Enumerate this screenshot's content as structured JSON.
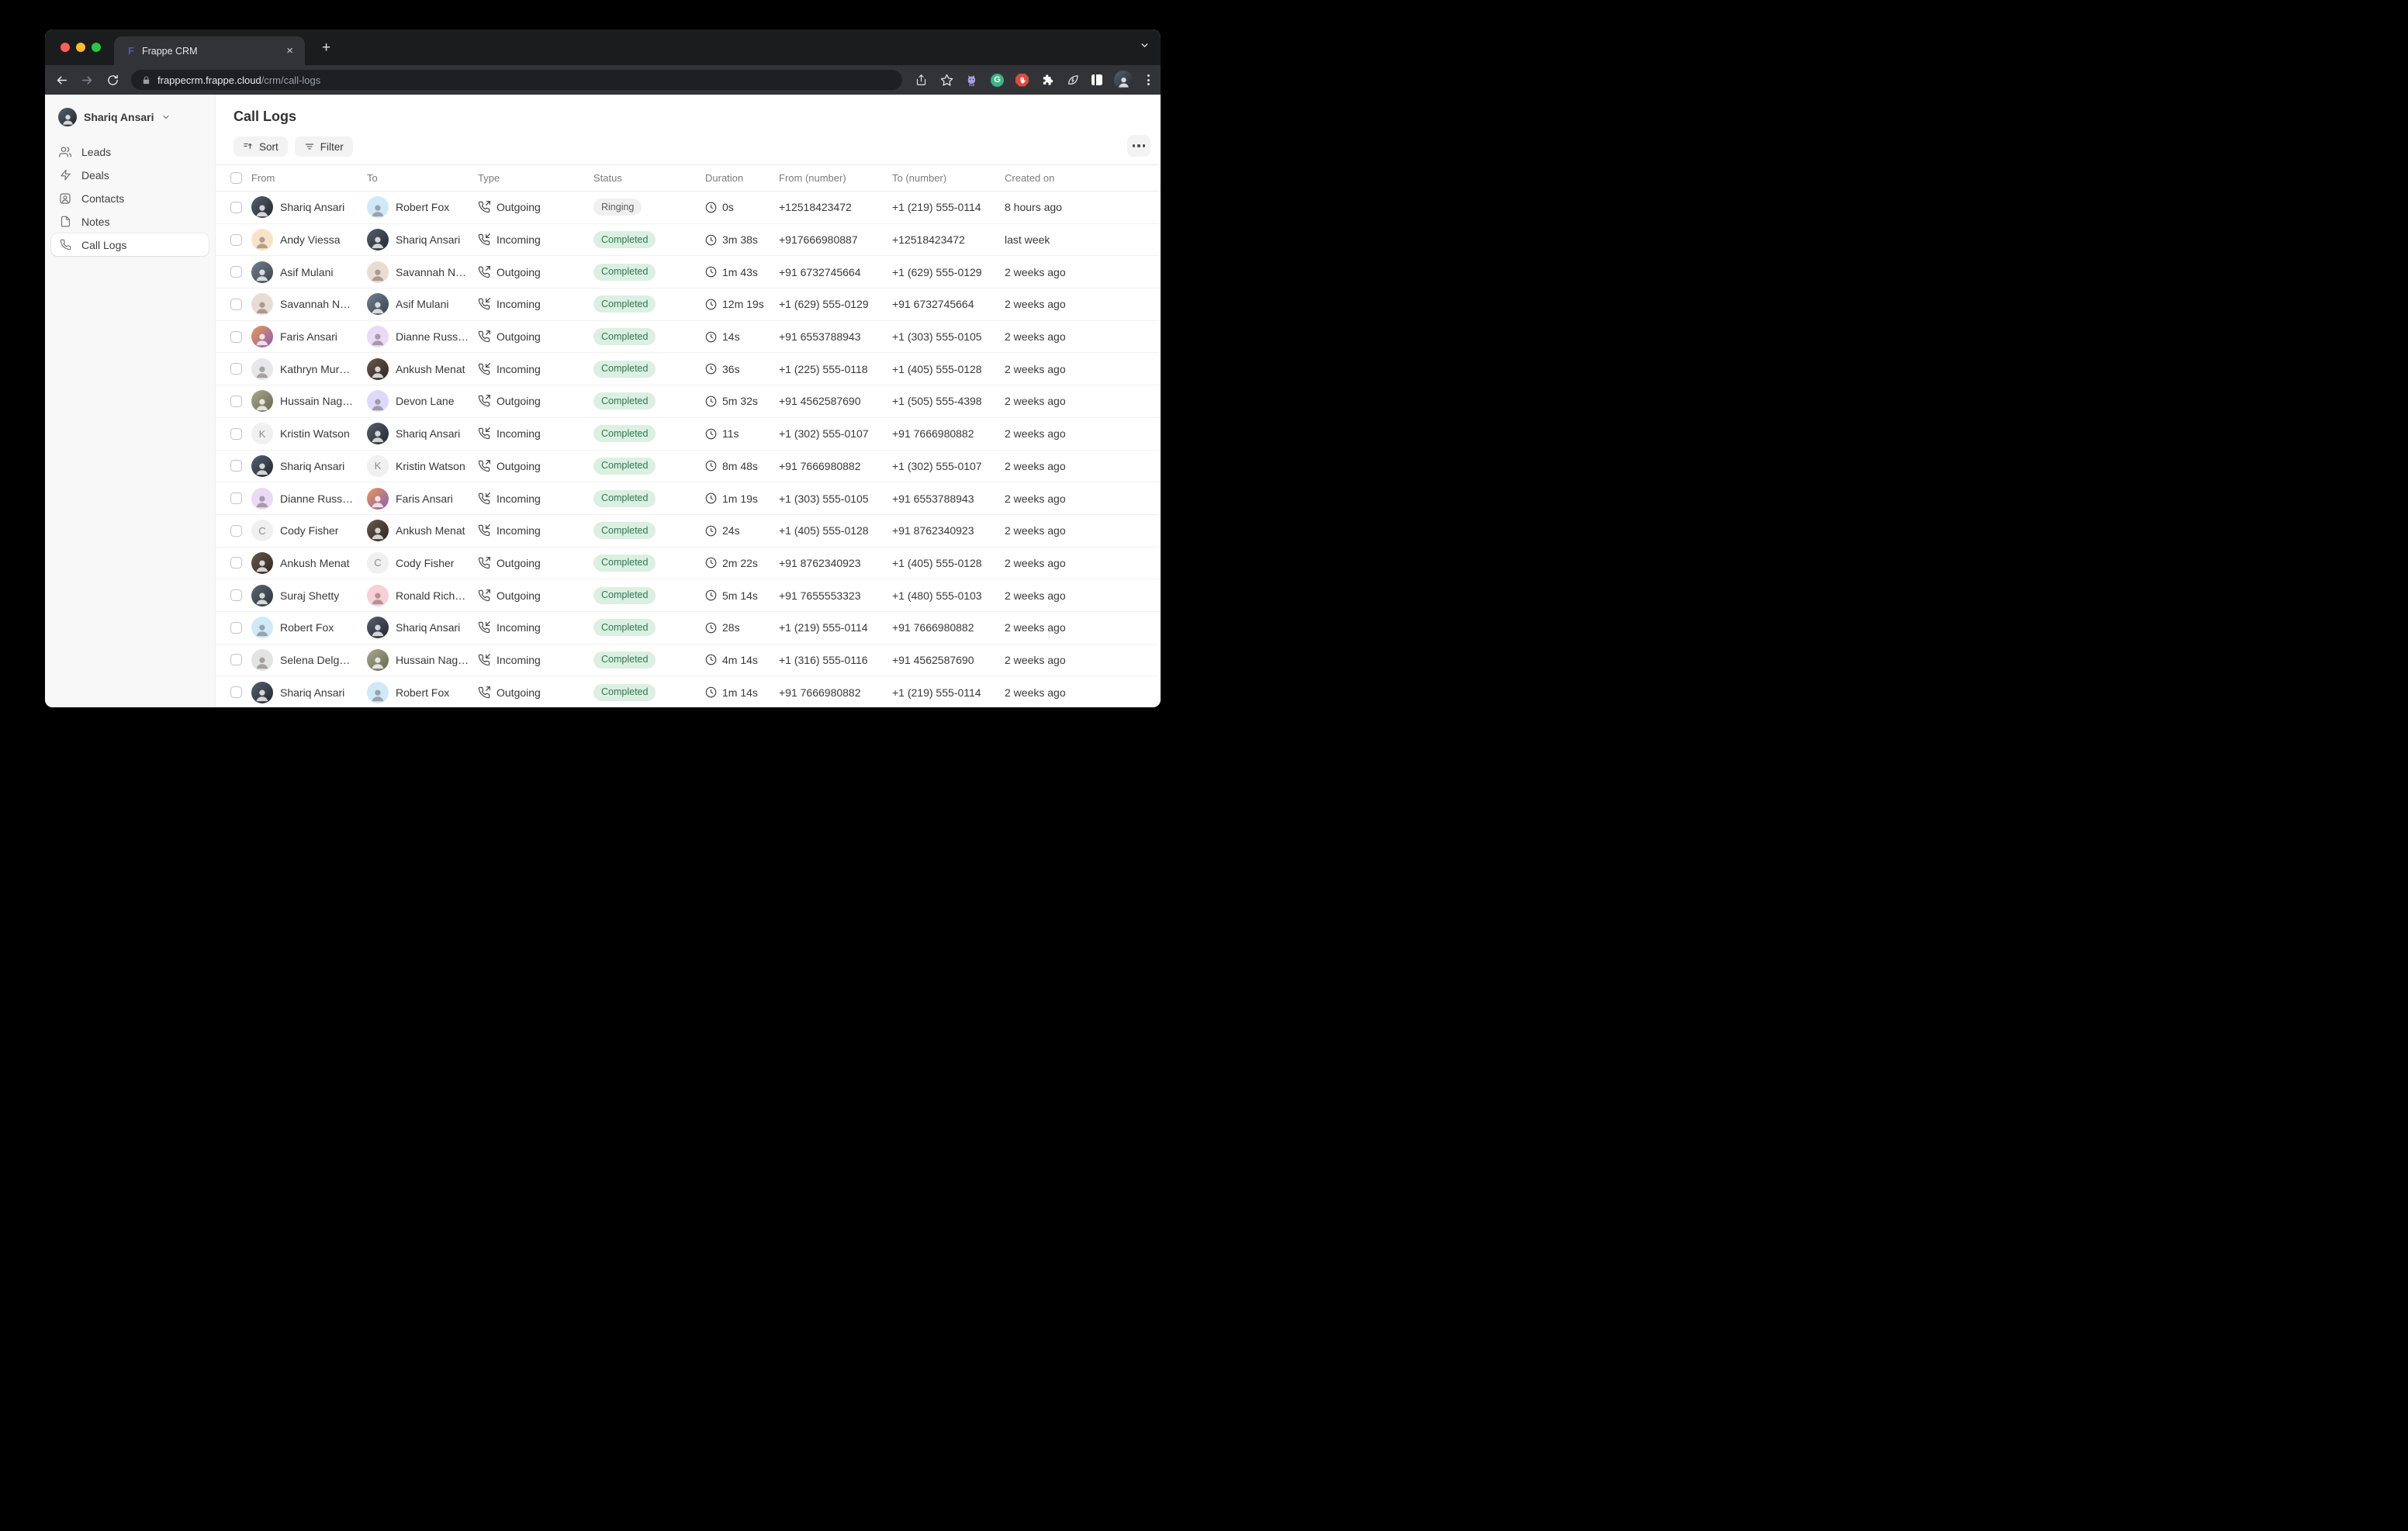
{
  "browser": {
    "tab_title": "Frappe CRM",
    "favicon_letter": "F",
    "url_host": "frappecrm.frappe.cloud",
    "url_path": "/crm/call-logs"
  },
  "sidebar": {
    "user": {
      "name": "Shariq Ansari"
    },
    "items": [
      {
        "label": "Leads",
        "icon": "leads-icon",
        "active": false
      },
      {
        "label": "Deals",
        "icon": "deals-icon",
        "active": false
      },
      {
        "label": "Contacts",
        "icon": "contacts-icon",
        "active": false
      },
      {
        "label": "Notes",
        "icon": "notes-icon",
        "active": false
      },
      {
        "label": "Call Logs",
        "icon": "phone-icon",
        "active": true
      }
    ]
  },
  "main": {
    "title": "Call Logs",
    "toolbar": {
      "sort_label": "Sort",
      "filter_label": "Filter"
    },
    "colors": {
      "completed_bg": "#dcefe3",
      "completed_text": "#2e7a4e",
      "ringing_bg": "#f0f0f0",
      "ringing_text": "#5a5a5a"
    },
    "table": {
      "columns": [
        "From",
        "To",
        "Type",
        "Status",
        "Duration",
        "From (number)",
        "To (number)",
        "Created on"
      ],
      "rows": [
        {
          "from": {
            "name": "Shariq Ansari",
            "avatar": {
              "kind": "photo",
              "bg": "#566070",
              "bg2": "#23272e"
            }
          },
          "to": {
            "name": "Robert Fox",
            "avatar": {
              "kind": "memoji",
              "bg": "#cfe9f8"
            }
          },
          "type": "Outgoing",
          "status": "Ringing",
          "duration": "0s",
          "from_number": "+12518423472",
          "to_number": "+1 (219) 555-0114",
          "created_on": "8 hours ago"
        },
        {
          "from": {
            "name": "Andy Viessa",
            "avatar": {
              "kind": "memoji",
              "bg": "#f8e3c9"
            }
          },
          "to": {
            "name": "Shariq Ansari",
            "avatar": {
              "kind": "photo",
              "bg": "#566070",
              "bg2": "#23272e"
            }
          },
          "type": "Incoming",
          "status": "Completed",
          "duration": "3m 38s",
          "from_number": "+917666980887",
          "to_number": "+12518423472",
          "created_on": "last week"
        },
        {
          "from": {
            "name": "Asif Mulani",
            "avatar": {
              "kind": "photo",
              "bg": "#72808f",
              "bg2": "#3a434d"
            }
          },
          "to": {
            "name": "Savannah N…",
            "avatar": {
              "kind": "memoji",
              "bg": "#e9dcd3"
            }
          },
          "type": "Outgoing",
          "status": "Completed",
          "duration": "1m 43s",
          "from_number": "+91 6732745664",
          "to_number": "+1 (629) 555-0129",
          "created_on": "2 weeks ago"
        },
        {
          "from": {
            "name": "Savannah N…",
            "avatar": {
              "kind": "memoji",
              "bg": "#e9dcd3"
            }
          },
          "to": {
            "name": "Asif Mulani",
            "avatar": {
              "kind": "photo",
              "bg": "#72808f",
              "bg2": "#3a434d"
            }
          },
          "type": "Incoming",
          "status": "Completed",
          "duration": "12m 19s",
          "from_number": "+1 (629) 555-0129",
          "to_number": "+91 6732745664",
          "created_on": "2 weeks ago"
        },
        {
          "from": {
            "name": "Faris Ansari",
            "avatar": {
              "kind": "photo",
              "bg": "#e89a4f",
              "bg2": "#8e5bb8"
            }
          },
          "to": {
            "name": "Dianne Russ…",
            "avatar": {
              "kind": "memoji",
              "bg": "#e9daf6"
            }
          },
          "type": "Outgoing",
          "status": "Completed",
          "duration": "14s",
          "from_number": "+91 6553788943",
          "to_number": "+1 (303) 555-0105",
          "created_on": "2 weeks ago"
        },
        {
          "from": {
            "name": "Kathryn Mur…",
            "avatar": {
              "kind": "memoji",
              "bg": "#e7e7e9"
            }
          },
          "to": {
            "name": "Ankush Menat",
            "avatar": {
              "kind": "photo",
              "bg": "#6a584c",
              "bg2": "#2e2620"
            }
          },
          "type": "Incoming",
          "status": "Completed",
          "duration": "36s",
          "from_number": "+1 (225) 555-0118",
          "to_number": "+1 (405) 555-0128",
          "created_on": "2 weeks ago"
        },
        {
          "from": {
            "name": "Hussain Nag…",
            "avatar": {
              "kind": "photo",
              "bg": "#a8aa8e",
              "bg2": "#66684f"
            }
          },
          "to": {
            "name": "Devon Lane",
            "avatar": {
              "kind": "memoji",
              "bg": "#ded9f9"
            }
          },
          "type": "Outgoing",
          "status": "Completed",
          "duration": "5m 32s",
          "from_number": "+91 4562587690",
          "to_number": "+1 (505) 555-4398",
          "created_on": "2 weeks ago"
        },
        {
          "from": {
            "name": "Kristin Watson",
            "avatar": {
              "kind": "letter",
              "bg": "#f0f0f0",
              "letter": "K"
            }
          },
          "to": {
            "name": "Shariq Ansari",
            "avatar": {
              "kind": "photo",
              "bg": "#566070",
              "bg2": "#23272e"
            }
          },
          "type": "Incoming",
          "status": "Completed",
          "duration": "11s",
          "from_number": "+1 (302) 555-0107",
          "to_number": "+91 7666980882",
          "created_on": "2 weeks ago"
        },
        {
          "from": {
            "name": "Shariq Ansari",
            "avatar": {
              "kind": "photo",
              "bg": "#566070",
              "bg2": "#23272e"
            }
          },
          "to": {
            "name": "Kristin Watson",
            "avatar": {
              "kind": "letter",
              "bg": "#f0f0f0",
              "letter": "K"
            }
          },
          "type": "Outgoing",
          "status": "Completed",
          "duration": "8m 48s",
          "from_number": "+91 7666980882",
          "to_number": "+1 (302) 555-0107",
          "created_on": "2 weeks ago"
        },
        {
          "from": {
            "name": "Dianne Russ…",
            "avatar": {
              "kind": "memoji",
              "bg": "#e9daf6"
            }
          },
          "to": {
            "name": "Faris Ansari",
            "avatar": {
              "kind": "photo",
              "bg": "#e89a4f",
              "bg2": "#8e5bb8"
            }
          },
          "type": "Incoming",
          "status": "Completed",
          "duration": "1m 19s",
          "from_number": "+1 (303) 555-0105",
          "to_number": "+91 6553788943",
          "created_on": "2 weeks ago"
        },
        {
          "from": {
            "name": "Cody Fisher",
            "avatar": {
              "kind": "letter",
              "bg": "#f0f0f0",
              "letter": "C"
            }
          },
          "to": {
            "name": "Ankush Menat",
            "avatar": {
              "kind": "photo",
              "bg": "#6a584c",
              "bg2": "#2e2620"
            }
          },
          "type": "Incoming",
          "status": "Completed",
          "duration": "24s",
          "from_number": "+1 (405) 555-0128",
          "to_number": "+91 8762340923",
          "created_on": "2 weeks ago"
        },
        {
          "from": {
            "name": "Ankush Menat",
            "avatar": {
              "kind": "photo",
              "bg": "#6a584c",
              "bg2": "#2e2620"
            }
          },
          "to": {
            "name": "Cody Fisher",
            "avatar": {
              "kind": "letter",
              "bg": "#f0f0f0",
              "letter": "C"
            }
          },
          "type": "Outgoing",
          "status": "Completed",
          "duration": "2m 22s",
          "from_number": "+91 8762340923",
          "to_number": "+1 (405) 555-0128",
          "created_on": "2 weeks ago"
        },
        {
          "from": {
            "name": "Suraj Shetty",
            "avatar": {
              "kind": "photo",
              "bg": "#5b6770",
              "bg2": "#2c343b"
            }
          },
          "to": {
            "name": "Ronald Rich…",
            "avatar": {
              "kind": "memoji",
              "bg": "#f9ced7"
            }
          },
          "type": "Outgoing",
          "status": "Completed",
          "duration": "5m 14s",
          "from_number": "+91 7655553323",
          "to_number": "+1 (480) 555-0103",
          "created_on": "2 weeks ago"
        },
        {
          "from": {
            "name": "Robert Fox",
            "avatar": {
              "kind": "memoji",
              "bg": "#cfe9f8"
            }
          },
          "to": {
            "name": "Shariq Ansari",
            "avatar": {
              "kind": "photo",
              "bg": "#566070",
              "bg2": "#23272e"
            }
          },
          "type": "Incoming",
          "status": "Completed",
          "duration": "28s",
          "from_number": "+1 (219) 555-0114",
          "to_number": "+91 7666980882",
          "created_on": "2 weeks ago"
        },
        {
          "from": {
            "name": "Selena Delg…",
            "avatar": {
              "kind": "memoji",
              "bg": "#e3e3e3"
            }
          },
          "to": {
            "name": "Hussain Nag…",
            "avatar": {
              "kind": "photo",
              "bg": "#a8aa8e",
              "bg2": "#66684f"
            }
          },
          "type": "Incoming",
          "status": "Completed",
          "duration": "4m 14s",
          "from_number": "+1 (316) 555-0116",
          "to_number": "+91 4562587690",
          "created_on": "2 weeks ago"
        },
        {
          "from": {
            "name": "Shariq Ansari",
            "avatar": {
              "kind": "photo",
              "bg": "#566070",
              "bg2": "#23272e"
            }
          },
          "to": {
            "name": "Robert Fox",
            "avatar": {
              "kind": "memoji",
              "bg": "#cfe9f8"
            }
          },
          "type": "Outgoing",
          "status": "Completed",
          "duration": "1m 14s",
          "from_number": "+91 7666980882",
          "to_number": "+1 (219) 555-0114",
          "created_on": "2 weeks ago"
        },
        {
          "partial": true,
          "from": {
            "name": "",
            "avatar": {
              "kind": "memoji",
              "bg": "#d9cf9d"
            }
          },
          "to": {
            "name": "",
            "avatar": {
              "kind": "memoji",
              "bg": "#e2e2e2"
            }
          },
          "type": "",
          "status": "",
          "duration": "",
          "from_number": "",
          "to_number": "",
          "created_on": ""
        }
      ]
    }
  }
}
